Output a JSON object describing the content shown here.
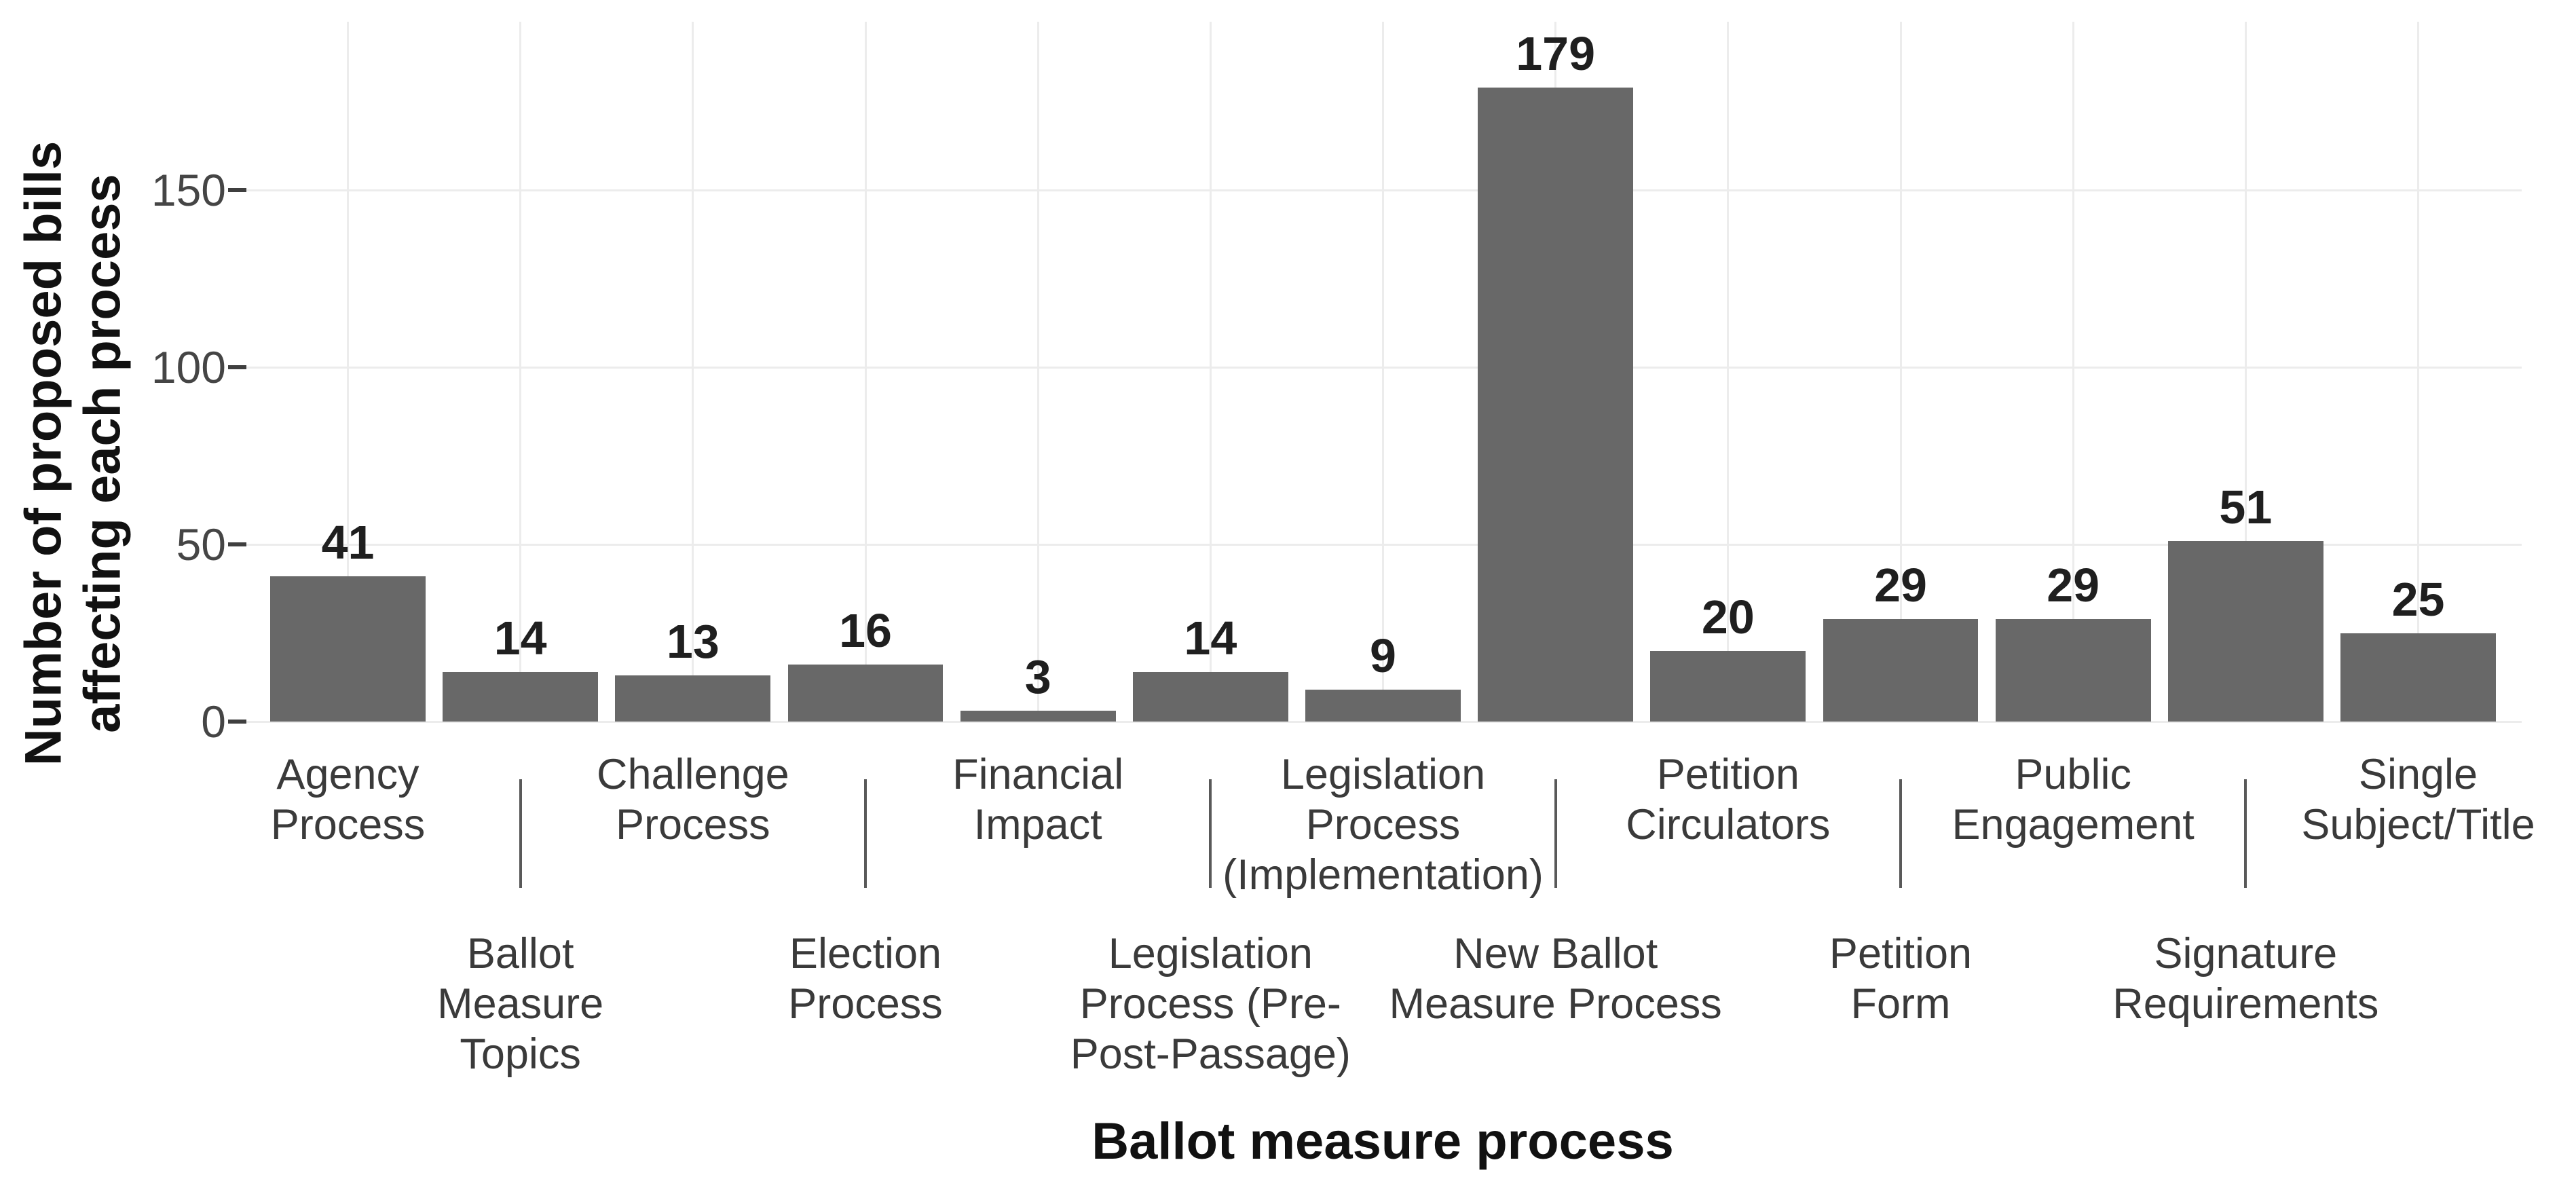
{
  "chart_data": {
    "type": "bar",
    "title": "",
    "xlabel": "Ballot measure process",
    "ylabel": "Number of proposed bills affecting each process",
    "ylabel_lines": [
      "Number of proposed bills",
      "affecting each process"
    ],
    "yticks": [
      0,
      50,
      100,
      150
    ],
    "ylim": [
      0,
      190
    ],
    "grid": "major horizontal gridlines at yticks, one vertical gridline per category",
    "legend_position": "none",
    "bar_value_labels_shown": true,
    "colors": {
      "bar": "#686868",
      "grid": "#ececec",
      "tick_text": "#454545",
      "category_text": "#3a3a3a",
      "value_label": "#1f1f1f",
      "tick_mark": "#3f3f3f",
      "x_separator_tick": "#595959",
      "axis_title": "#111111",
      "background": "#ffffff"
    },
    "categories": [
      {
        "label": "Agency Process",
        "lines": [
          "Agency",
          "Process"
        ],
        "row": 1,
        "value": 41
      },
      {
        "label": "Ballot Measure Topics",
        "lines": [
          "Ballot",
          "Measure",
          "Topics"
        ],
        "row": 2,
        "value": 14
      },
      {
        "label": "Challenge Process",
        "lines": [
          "Challenge",
          "Process"
        ],
        "row": 1,
        "value": 13
      },
      {
        "label": "Election Process",
        "lines": [
          "Election",
          "Process"
        ],
        "row": 2,
        "value": 16
      },
      {
        "label": "Financial Impact",
        "lines": [
          "Financial",
          "Impact"
        ],
        "row": 1,
        "value": 3
      },
      {
        "label": "Legislation Process (Pre-Post-Passage)",
        "lines": [
          "Legislation",
          "Process (Pre-",
          "Post-Passage)"
        ],
        "row": 2,
        "value": 14
      },
      {
        "label": "Legislation Process (Implementation)",
        "lines": [
          "Legislation",
          "Process",
          "(Implementation)"
        ],
        "row": 1,
        "value": 9
      },
      {
        "label": "New Ballot Measure Process",
        "lines": [
          "New Ballot",
          "Measure Process"
        ],
        "row": 2,
        "value": 179
      },
      {
        "label": "Petition Circulators",
        "lines": [
          "Petition",
          "Circulators"
        ],
        "row": 1,
        "value": 20
      },
      {
        "label": "Petition Form",
        "lines": [
          "Petition",
          "Form"
        ],
        "row": 2,
        "value": 29
      },
      {
        "label": "Public Engagement",
        "lines": [
          "Public",
          "Engagement"
        ],
        "row": 1,
        "value": 29
      },
      {
        "label": "Signature Requirements",
        "lines": [
          "Signature",
          "Requirements"
        ],
        "row": 2,
        "value": 51
      },
      {
        "label": "Single Subject/Title",
        "lines": [
          "Single",
          "Subject/Title"
        ],
        "row": 1,
        "value": 25
      }
    ],
    "values": [
      41,
      14,
      13,
      16,
      3,
      14,
      9,
      179,
      20,
      29,
      29,
      51,
      25
    ]
  }
}
